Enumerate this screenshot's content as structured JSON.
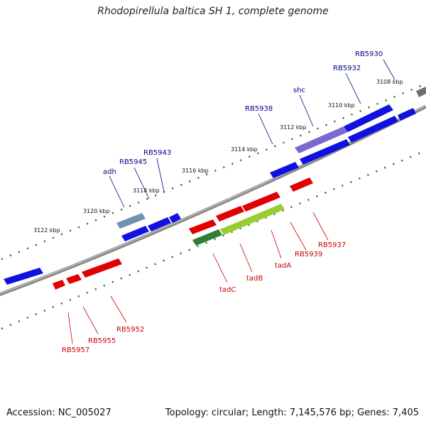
{
  "title": "Rhodopirellula baltica SH 1, complete genome",
  "footer": {
    "accession": "Accession: NC_005027",
    "topology": "Topology: circular; Length: 7,145,576 bp; Genes: 7,405"
  },
  "colors": {
    "forward_gene": "#0a0ad8",
    "reverse_gene": "#e00000",
    "forward_label": "#00008b",
    "reverse_label": "#cc0000",
    "backbone": "#808080",
    "tick": "#1a7a1a",
    "highlight_purple": "#7a6ad0",
    "highlight_green": "#9acd32",
    "highlight_dark_green": "#2e7d32",
    "highlight_steel": "#7090b0",
    "highlight_gray": "#707070"
  },
  "scale": {
    "unit": "kbp",
    "labels": [
      "3108 kbp",
      "3110 kbp",
      "3112 kbp",
      "3114 kbp",
      "3116 kbp",
      "3118 kbp",
      "3120 kbp",
      "3122 kbp"
    ]
  },
  "forward_genes": [
    {
      "name": "RB5930",
      "label": "RB5930"
    },
    {
      "name": "RB5932",
      "label": "RB5932"
    },
    {
      "name": "shc",
      "label": "shc"
    },
    {
      "name": "RB5938",
      "label": "RB5938"
    },
    {
      "name": "RB5943",
      "label": "RB5943"
    },
    {
      "name": "RB5945",
      "label": "RB5945"
    },
    {
      "name": "adh",
      "label": "adh"
    }
  ],
  "reverse_genes": [
    {
      "name": "RB5937",
      "label": "RB5937"
    },
    {
      "name": "RB5939",
      "label": "RB5939"
    },
    {
      "name": "tadA",
      "label": "tadA"
    },
    {
      "name": "tadB",
      "label": "tadB"
    },
    {
      "name": "tadC",
      "label": "tadC"
    },
    {
      "name": "RB5952",
      "label": "RB5952"
    },
    {
      "name": "RB5955",
      "label": "RB5955"
    },
    {
      "name": "RB5957",
      "label": "RB5957"
    }
  ]
}
